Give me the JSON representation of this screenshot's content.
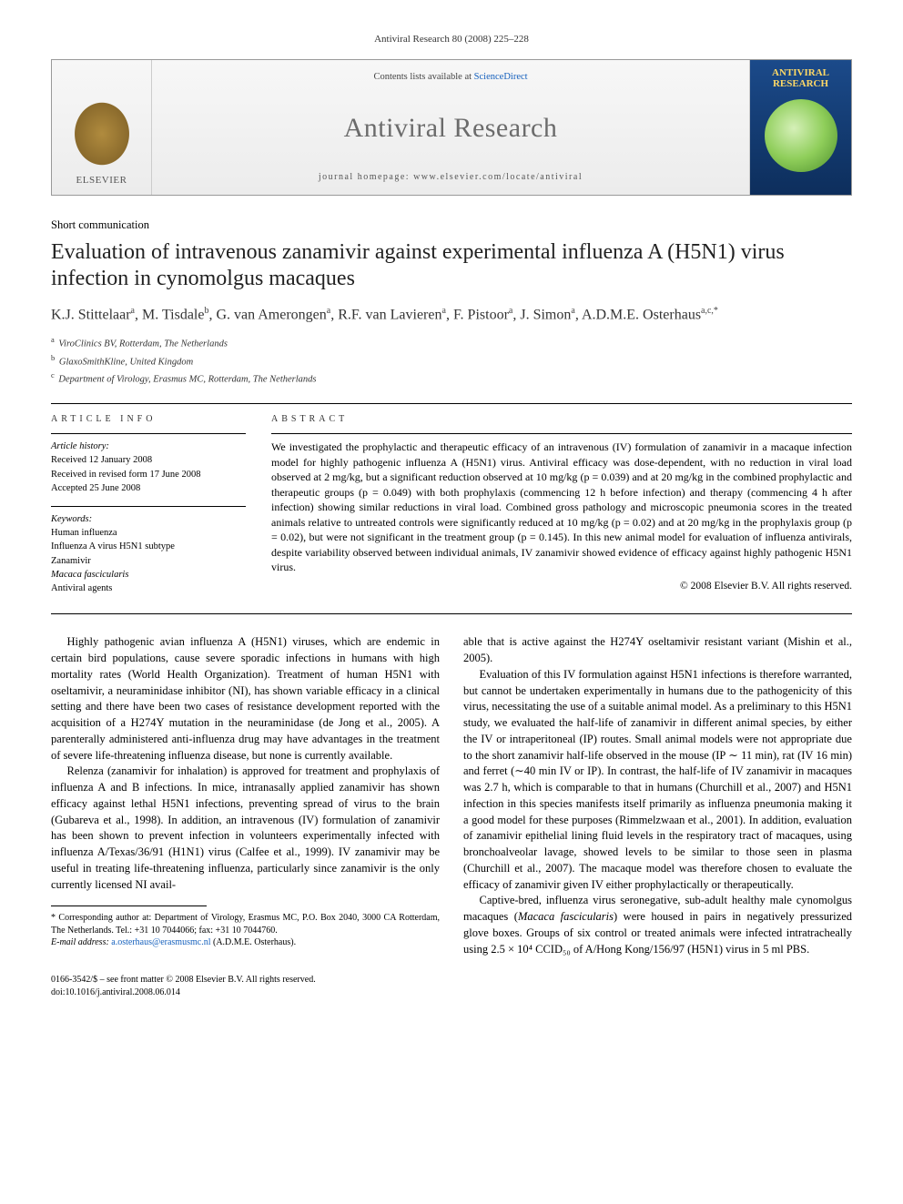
{
  "running_head": "Antiviral Research 80 (2008) 225–228",
  "masthead": {
    "contents_prefix": "Contents lists available at ",
    "contents_link": "ScienceDirect",
    "journal": "Antiviral Research",
    "homepage_label": "journal homepage: ",
    "homepage_url": "www.elsevier.com/locate/antiviral",
    "publisher": "ELSEVIER",
    "cover_title": "ANTIVIRAL RESEARCH"
  },
  "article_type": "Short communication",
  "title": "Evaluation of intravenous zanamivir against experimental influenza A (H5N1) virus infection in cynomolgus macaques",
  "authors_html": "K.J. Stittelaar<sup>a</sup>, M. Tisdale<sup>b</sup>, G. van Amerongen<sup>a</sup>, R.F. van Lavieren<sup>a</sup>, F. Pistoor<sup>a</sup>, J. Simon<sup>a</sup>, A.D.M.E. Osterhaus<sup>a,c,*</sup>",
  "affiliations": [
    {
      "key": "a",
      "text": "ViroClinics BV, Rotterdam, The Netherlands"
    },
    {
      "key": "b",
      "text": "GlaxoSmithKline, United Kingdom"
    },
    {
      "key": "c",
      "text": "Department of Virology, Erasmus MC, Rotterdam, The Netherlands"
    }
  ],
  "info": {
    "heading": "ARTICLE INFO",
    "history_label": "Article history:",
    "history": [
      "Received 12 January 2008",
      "Received in revised form 17 June 2008",
      "Accepted 25 June 2008"
    ],
    "keywords_label": "Keywords:",
    "keywords": [
      "Human influenza",
      "Influenza A virus H5N1 subtype",
      "Zanamivir",
      "Macaca fascicularis",
      "Antiviral agents"
    ]
  },
  "abstract": {
    "heading": "ABSTRACT",
    "text": "We investigated the prophylactic and therapeutic efficacy of an intravenous (IV) formulation of zanamivir in a macaque infection model for highly pathogenic influenza A (H5N1) virus. Antiviral efficacy was dose-dependent, with no reduction in viral load observed at 2 mg/kg, but a significant reduction observed at 10 mg/kg (p = 0.039) and at 20 mg/kg in the combined prophylactic and therapeutic groups (p = 0.049) with both prophylaxis (commencing 12 h before infection) and therapy (commencing 4 h after infection) showing similar reductions in viral load. Combined gross pathology and microscopic pneumonia scores in the treated animals relative to untreated controls were significantly reduced at 10 mg/kg (p = 0.02) and at 20 mg/kg in the prophylaxis group (p = 0.02), but were not significant in the treatment group (p = 0.145). In this new animal model for evaluation of influenza antivirals, despite variability observed between individual animals, IV zanamivir showed evidence of efficacy against highly pathogenic H5N1 virus.",
    "copyright": "© 2008 Elsevier B.V. All rights reserved."
  },
  "body": {
    "p1": "Highly pathogenic avian influenza A (H5N1) viruses, which are endemic in certain bird populations, cause severe sporadic infections in humans with high mortality rates (World Health Organization). Treatment of human H5N1 with oseltamivir, a neuraminidase inhibitor (NI), has shown variable efficacy in a clinical setting and there have been two cases of resistance development reported with the acquisition of a H274Y mutation in the neuraminidase (de Jong et al., 2005). A parenterally administered anti-influenza drug may have advantages in the treatment of severe life-threatening influenza disease, but none is currently available.",
    "p2": "Relenza (zanamivir for inhalation) is approved for treatment and prophylaxis of influenza A and B infections. In mice, intranasally applied zanamivir has shown efficacy against lethal H5N1 infections, preventing spread of virus to the brain (Gubareva et al., 1998). In addition, an intravenous (IV) formulation of zanamivir has been shown to prevent infection in volunteers experimentally infected with influenza A/Texas/36/91 (H1N1) virus (Calfee et al., 1999). IV zanamivir may be useful in treating life-threatening influenza, particularly since zanamivir is the only currently licensed NI avail-",
    "p3": "able that is active against the H274Y oseltamivir resistant variant (Mishin et al., 2005).",
    "p4": "Evaluation of this IV formulation against H5N1 infections is therefore warranted, but cannot be undertaken experimentally in humans due to the pathogenicity of this virus, necessitating the use of a suitable animal model. As a preliminary to this H5N1 study, we evaluated the half-life of zanamivir in different animal species, by either the IV or intraperitoneal (IP) routes. Small animal models were not appropriate due to the short zanamivir half-life observed in the mouse (IP ∼ 11 min), rat (IV 16 min) and ferret (∼40 min IV or IP). In contrast, the half-life of IV zanamivir in macaques was 2.7 h, which is comparable to that in humans (Churchill et al., 2007) and H5N1 infection in this species manifests itself primarily as influenza pneumonia making it a good model for these purposes (Rimmelzwaan et al., 2001). In addition, evaluation of zanamivir epithelial lining fluid levels in the respiratory tract of macaques, using bronchoalveolar lavage, showed levels to be similar to those seen in plasma (Churchill et al., 2007). The macaque model was therefore chosen to evaluate the efficacy of zanamivir given IV either prophylactically or therapeutically.",
    "p5_pre": "Captive-bred, influenza virus seronegative, sub-adult healthy male cynomolgus macaques (",
    "p5_ital": "Macaca fascicularis",
    "p5_post": ") were housed in pairs in negatively pressurized glove boxes. Groups of six control or treated animals were infected intratracheally using 2.5 × 10⁴ CCID₅₀ of A/Hong Kong/156/97 (H5N1) virus in 5 ml PBS."
  },
  "footnote": {
    "corr": "* Corresponding author at: Department of Virology, Erasmus MC, P.O. Box 2040, 3000 CA Rotterdam, The Netherlands. Tel.: +31 10 7044066; fax: +31 10 7044760.",
    "email_label": "E-mail address: ",
    "email": "a.osterhaus@erasmusmc.nl",
    "email_suffix": " (A.D.M.E. Osterhaus)."
  },
  "page_bottom": {
    "line1": "0166-3542/$ – see front matter © 2008 Elsevier B.V. All rights reserved.",
    "line2": "doi:10.1016/j.antiviral.2008.06.014"
  },
  "colors": {
    "link": "#1560bd",
    "text": "#000000",
    "muted": "#555555",
    "masthead_bg_top": "#f7f7f7",
    "masthead_bg_bot": "#ececec"
  }
}
